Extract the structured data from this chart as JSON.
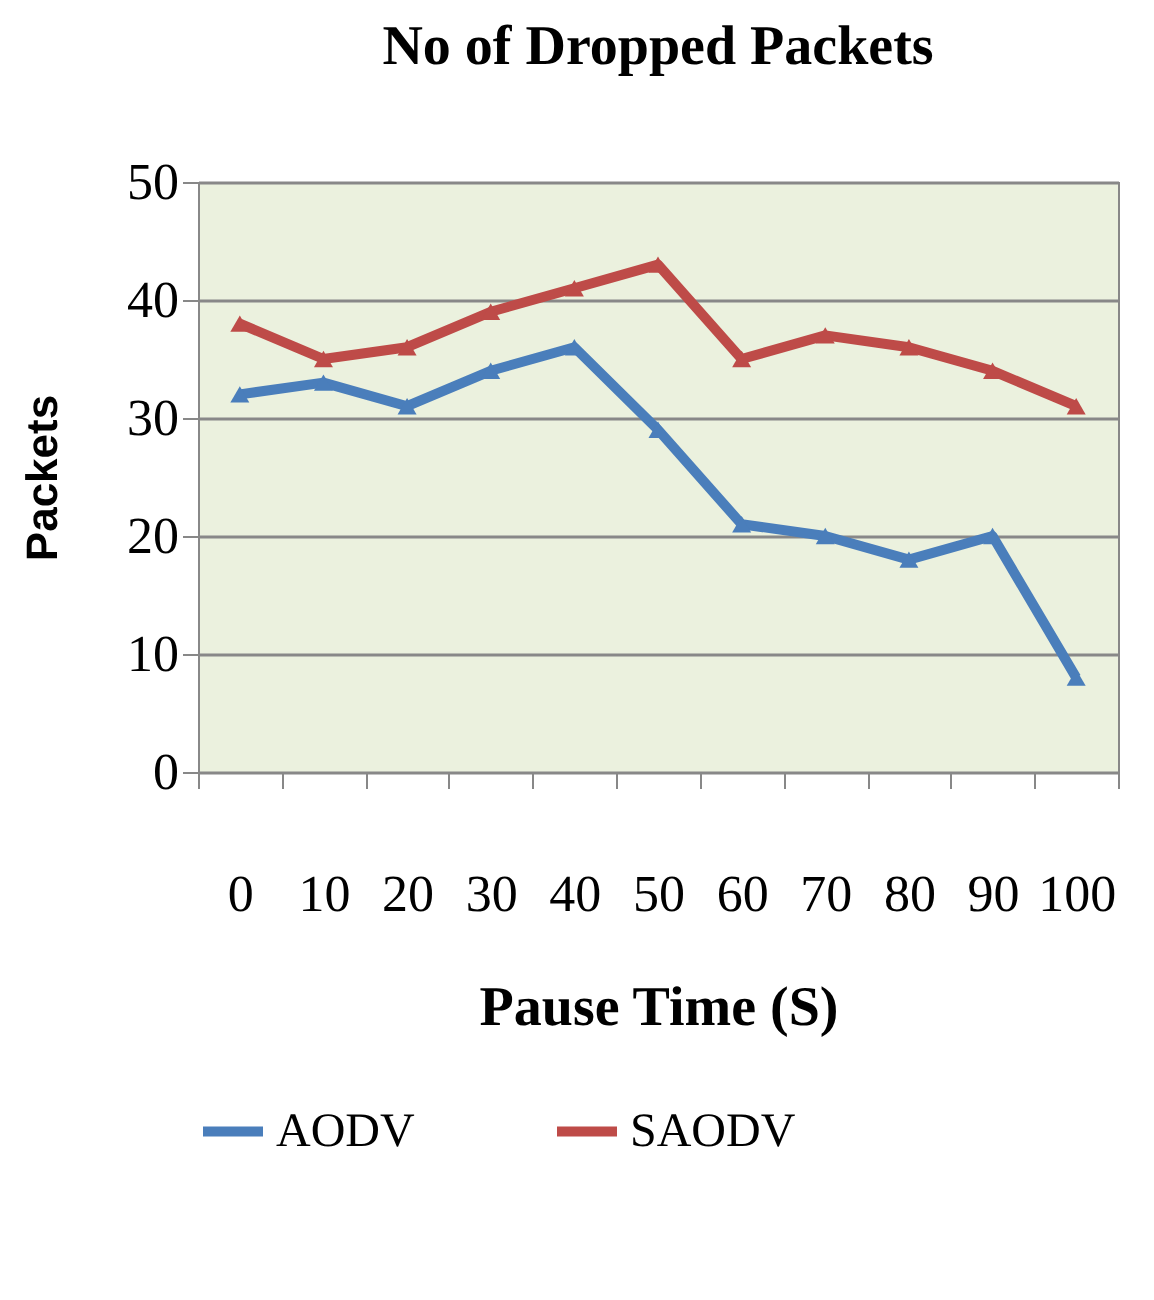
{
  "chart_data": {
    "type": "line",
    "title": "No of Dropped Packets",
    "xlabel": "Pause Time (S)",
    "ylabel": "Packets",
    "categories": [
      "0",
      "10",
      "20",
      "30",
      "40",
      "50",
      "60",
      "70",
      "80",
      "90",
      "100"
    ],
    "series": [
      {
        "name": "AODV",
        "color": "#4a7ebb",
        "values": [
          32,
          33,
          31,
          34,
          36,
          29,
          21,
          20,
          18,
          20,
          8
        ]
      },
      {
        "name": "SAODV",
        "color": "#be4b48",
        "values": [
          38,
          35,
          36,
          39,
          41,
          43,
          35,
          37,
          36,
          34,
          31
        ]
      }
    ],
    "ylim": [
      0,
      50
    ],
    "yticks": [
      0,
      10,
      20,
      30,
      40,
      50
    ],
    "grid": "y",
    "legend": "bottom",
    "marker": "triangle",
    "line_style": "solid"
  }
}
